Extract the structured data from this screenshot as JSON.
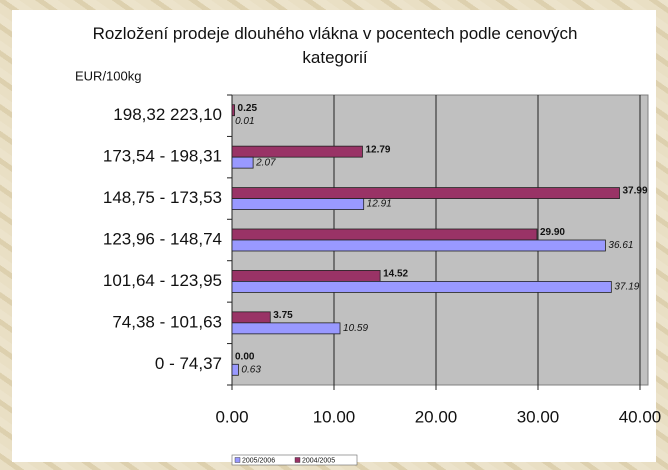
{
  "chart_data": {
    "type": "bar",
    "orientation": "horizontal",
    "title": "Rozložení prodeje dlouhého vlákna v pocentech podle cenových kategorií",
    "y_label": "EUR/100kg",
    "categories": [
      "198,32 223,10",
      "173,54 - 198,31",
      "148,75 - 173,53",
      "123,96 - 148,74",
      "101,64 - 123,95",
      "74,38 - 101,63",
      "0 - 74,37"
    ],
    "series": [
      {
        "name": "2004/2005",
        "color": "#993366",
        "values": [
          0.25,
          12.79,
          37.99,
          29.9,
          14.52,
          3.75,
          0
        ],
        "value_labels": [
          "0.25",
          "12.79",
          "37.99",
          "29.90",
          "14.52",
          "3.75",
          "0.00"
        ]
      },
      {
        "name": "2005/2006",
        "color": "#9999ff",
        "values": [
          0.01,
          2.07,
          12.91,
          36.61,
          37.19,
          10.59,
          0.63
        ],
        "value_labels": [
          "0.01",
          "2.07",
          "12.91",
          "36.61",
          "37.19",
          "10.59",
          "0.63"
        ]
      }
    ],
    "legend_order": [
      1,
      0
    ],
    "xlim": [
      0,
      40
    ],
    "xticks": [
      {
        "value": 0,
        "label": "0.00"
      },
      {
        "value": 10,
        "label": "10.00"
      },
      {
        "value": 20,
        "label": "20.00"
      },
      {
        "value": 30,
        "label": "30.00"
      },
      {
        "value": 40,
        "label": "40.00"
      }
    ],
    "grid": true
  }
}
